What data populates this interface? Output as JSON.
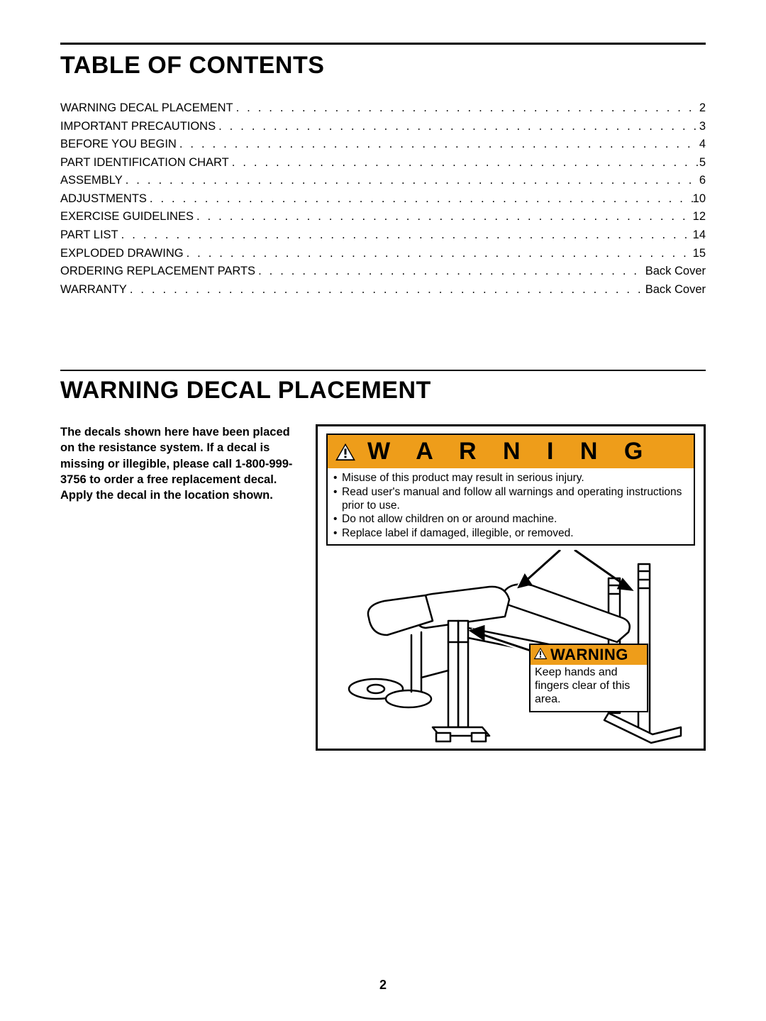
{
  "page": {
    "number": "2",
    "background_color": "#ffffff",
    "text_color": "#000000"
  },
  "sections": {
    "toc_title": "TABLE OF CONTENTS",
    "placement_title": "WARNING DECAL PLACEMENT"
  },
  "toc": {
    "entries": [
      {
        "label": "WARNING DECAL PLACEMENT",
        "page": "2"
      },
      {
        "label": "IMPORTANT PRECAUTIONS",
        "page": "3"
      },
      {
        "label": "BEFORE YOU BEGIN",
        "page": "4"
      },
      {
        "label": "PART IDENTIFICATION CHART",
        "page": "5"
      },
      {
        "label": "ASSEMBLY",
        "page": "6"
      },
      {
        "label": "ADJUSTMENTS",
        "page": "10"
      },
      {
        "label": "EXERCISE GUIDELINES",
        "page": "12"
      },
      {
        "label": "PART LIST",
        "page": "14"
      },
      {
        "label": "EXPLODED DRAWING",
        "page": "15"
      },
      {
        "label": "ORDERING REPLACEMENT PARTS",
        "page": "Back Cover"
      },
      {
        "label": "WARRANTY",
        "page": "Back Cover"
      }
    ]
  },
  "intro": {
    "text": "The decals shown here have been placed on the resistance system. If a decal is missing or illegible, please call 1-800-999-3756 to order a free replacement decal. Apply the decal in the location shown."
  },
  "decal_large": {
    "header": "W A R N I N G",
    "header_bg": "#ee9d1a",
    "bullets": [
      "Misuse of this product may result in serious injury.",
      "Read user's manual and follow all warnings and operating instructions prior to use.",
      "Do not allow children on or around machine.",
      "Replace label if damaged, illegible, or  removed."
    ]
  },
  "decal_small": {
    "header": "WARNING",
    "header_bg": "#ee9d1a",
    "body": "Keep hands and fingers clear of this area."
  },
  "figure": {
    "type": "diagram",
    "description": "Line drawing of a weight bench with two warning decal callouts",
    "border_color": "#000000",
    "line_stroke": "#000000",
    "callout_arrow_color": "#000000"
  }
}
